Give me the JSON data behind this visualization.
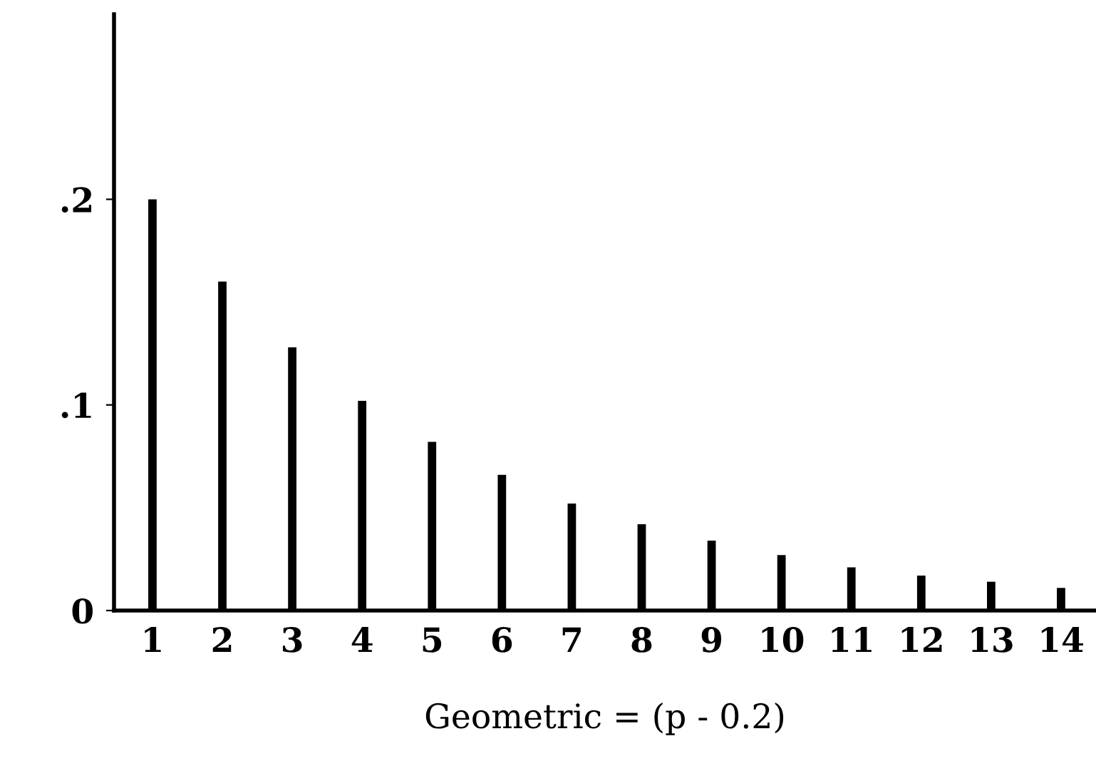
{
  "chart_data": {
    "type": "bar",
    "xlabel": "Geometric = (p - 0.2)",
    "categories": [
      "1",
      "2",
      "3",
      "4",
      "5",
      "6",
      "7",
      "8",
      "9",
      "10",
      "11",
      "12",
      "13",
      "14"
    ],
    "values": [
      0.2,
      0.16,
      0.128,
      0.102,
      0.082,
      0.066,
      0.052,
      0.042,
      0.034,
      0.027,
      0.021,
      0.017,
      0.014,
      0.011
    ],
    "color": "#000000",
    "ylim": [
      0,
      0.29
    ],
    "yticks": [
      {
        "value": 0,
        "label": "0"
      },
      {
        "value": 0.1,
        "label": ".1"
      },
      {
        "value": 0.2,
        "label": ".2"
      }
    ],
    "grid": false
  }
}
